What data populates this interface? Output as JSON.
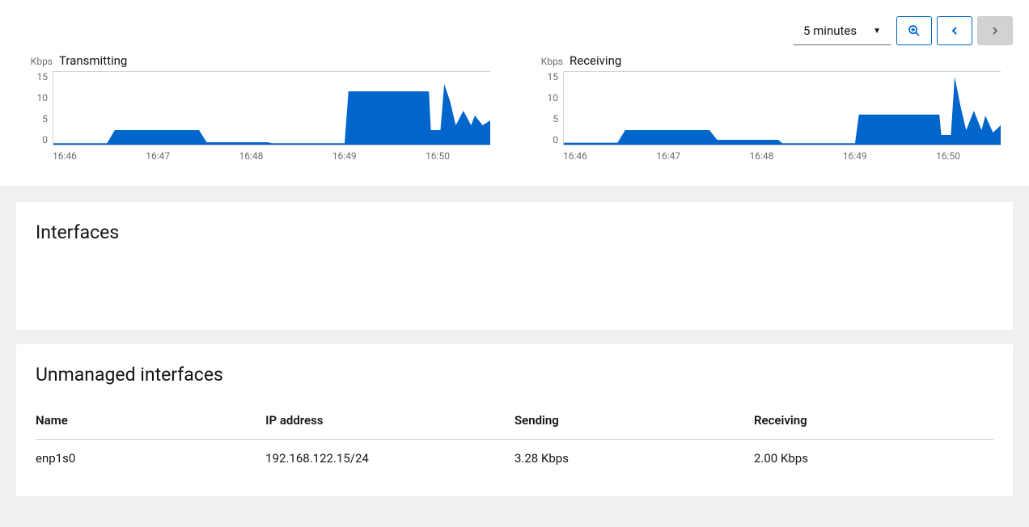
{
  "toolbar": {
    "dropdown_selected": "5 minutes"
  },
  "charts": {
    "unit_label": "Kbps",
    "ylim": [
      0,
      15
    ],
    "yticks": [
      "15",
      "10",
      "5",
      "0"
    ],
    "xticks": [
      "16:46",
      "16:47",
      "16:48",
      "16:49",
      "16:50"
    ],
    "x_range_minutes": 5,
    "colors": {
      "fill": "#0066cc",
      "border": "#d2d2d2",
      "text_muted": "#6a6e73",
      "text": "#151515",
      "bg": "#ffffff"
    },
    "transmitting": {
      "title": "Transmitting",
      "points": [
        {
          "t": 0.0,
          "v": 0.3
        },
        {
          "t": 0.14,
          "v": 0.3
        },
        {
          "t": 0.16,
          "v": 3.0
        },
        {
          "t": 0.38,
          "v": 3.0
        },
        {
          "t": 0.4,
          "v": 0.5
        },
        {
          "t": 0.56,
          "v": 0.5
        },
        {
          "t": 0.57,
          "v": 0.3
        },
        {
          "t": 0.76,
          "v": 0.3
        },
        {
          "t": 0.77,
          "v": 11.0
        },
        {
          "t": 0.98,
          "v": 11.0
        },
        {
          "t": 0.985,
          "v": 3.0
        },
        {
          "t": 1.01,
          "v": 3.0
        },
        {
          "t": 1.02,
          "v": 12.5
        },
        {
          "t": 1.035,
          "v": 9.0
        },
        {
          "t": 1.05,
          "v": 4.0
        },
        {
          "t": 1.07,
          "v": 7.0
        },
        {
          "t": 1.09,
          "v": 4.0
        },
        {
          "t": 1.1,
          "v": 6.0
        },
        {
          "t": 1.12,
          "v": 4.0
        },
        {
          "t": 1.14,
          "v": 5.0
        }
      ]
    },
    "receiving": {
      "title": "Receiving",
      "points": [
        {
          "t": 0.0,
          "v": 0.4
        },
        {
          "t": 0.14,
          "v": 0.4
        },
        {
          "t": 0.16,
          "v": 3.0
        },
        {
          "t": 0.38,
          "v": 3.0
        },
        {
          "t": 0.4,
          "v": 1.0
        },
        {
          "t": 0.56,
          "v": 1.0
        },
        {
          "t": 0.57,
          "v": 0.3
        },
        {
          "t": 0.76,
          "v": 0.3
        },
        {
          "t": 0.77,
          "v": 6.2
        },
        {
          "t": 0.98,
          "v": 6.2
        },
        {
          "t": 0.985,
          "v": 2.0
        },
        {
          "t": 1.01,
          "v": 2.0
        },
        {
          "t": 1.02,
          "v": 14.0
        },
        {
          "t": 1.035,
          "v": 8.0
        },
        {
          "t": 1.05,
          "v": 3.0
        },
        {
          "t": 1.07,
          "v": 7.0
        },
        {
          "t": 1.09,
          "v": 3.0
        },
        {
          "t": 1.1,
          "v": 6.0
        },
        {
          "t": 1.12,
          "v": 2.5
        },
        {
          "t": 1.14,
          "v": 4.0
        }
      ]
    }
  },
  "sections": {
    "interfaces_title": "Interfaces",
    "unmanaged_title": "Unmanaged interfaces"
  },
  "unmanaged_table": {
    "columns": {
      "name": "Name",
      "ip": "IP address",
      "sending": "Sending",
      "receiving": "Receiving"
    },
    "rows": [
      {
        "name": "enp1s0",
        "ip": "192.168.122.15/24",
        "sending": "3.28 Kbps",
        "receiving": "2.00 Kbps"
      }
    ]
  }
}
